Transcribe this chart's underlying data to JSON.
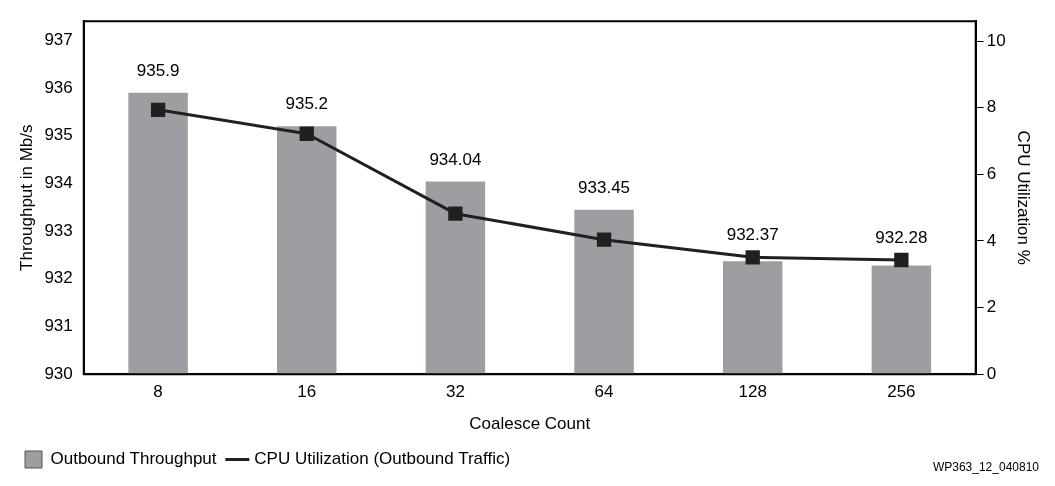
{
  "chart_data": {
    "type": "bar",
    "xlabel": "Coalesce Count",
    "ylabel": "Throughput in Mb/s",
    "y2label": "CPU Utilization %",
    "categories": [
      "8",
      "16",
      "32",
      "64",
      "128",
      "256"
    ],
    "series": [
      {
        "name": "Outbound Throughput",
        "color": "#9d9ea2",
        "values": [
          935.9,
          935.2,
          934.04,
          933.45,
          932.37,
          932.28
        ],
        "value_labels": [
          "935.9",
          "935.2",
          "934.04",
          "933.45",
          "932.37",
          "932.28"
        ]
      },
      {
        "name": "CPU Utilization (Outbound Traffic)",
        "type": "line",
        "axis": "y2",
        "color": "#231f20",
        "values": [
          7.94,
          7.22,
          4.82,
          4.04,
          3.51,
          3.43
        ]
      }
    ],
    "ylim": [
      930,
      937.4
    ],
    "yticks": [
      930,
      931,
      932,
      933,
      934,
      935,
      936,
      937
    ],
    "y2lim": [
      0,
      10.6
    ],
    "y2ticks": [
      0,
      2,
      4,
      6,
      8,
      10
    ],
    "marker": "square",
    "grid": false,
    "legend": "bottom",
    "annotations": [
      "WP363_12_040810"
    ]
  }
}
